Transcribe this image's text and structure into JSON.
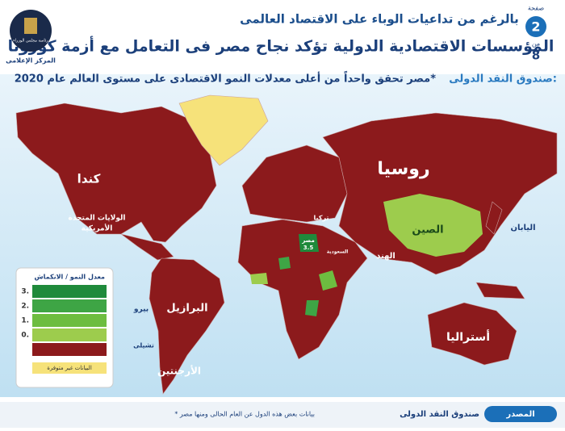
{
  "header": {
    "kicker": "بالرغم من تداعيات الوباء على الاقتصاد العالمى",
    "title": "المؤسسات الاقتصادية الدولية تؤكد نجاح مصر فى التعامل مع أزمة كورونا",
    "subtitle_lead": "صندوق النقد الدولى:",
    "subtitle": "مصر تحقق واحداً من أعلى معدلات النمو الاقتصادى على مستوى العالم عام 2020*",
    "page_label": "صفحة",
    "page_number": "2",
    "page_of": "من",
    "page_total": "8",
    "logo_line1": "رئاسة مجلس الوزراء",
    "logo_line2": "المركز الإعلامى"
  },
  "map": {
    "labels": [
      "كندا",
      "الولايات المتحدة",
      "الأمريكية",
      "روسيا",
      "الصين",
      "الهند",
      "اليابان",
      "أستراليا",
      "البرازيل",
      "الأرجنتين",
      "بيرو",
      "تشيلى",
      "تركيا",
      "السعودية",
      "مصر"
    ],
    "egypt_value": 3.5
  },
  "legend": {
    "title": "معدل النمو / الانكماش",
    "items": [
      {
        "label": "3.",
        "color": "#1f8a3b"
      },
      {
        "label": "2.",
        "color": "#3ea545"
      },
      {
        "label": "1.",
        "color": "#6dbd40"
      },
      {
        "label": "0.",
        "color": "#9dcc4d"
      },
      {
        "color": "#8c1a1c"
      }
    ],
    "na_label": "البيانات غير متوفرة",
    "na_color": "#f6e27a"
  },
  "footer": {
    "source_label": "المصدر",
    "source": "صندوق النقد الدولى",
    "note": "* بيانات بعض هذه الدول عن العام الحالى ومنها مصر"
  }
}
